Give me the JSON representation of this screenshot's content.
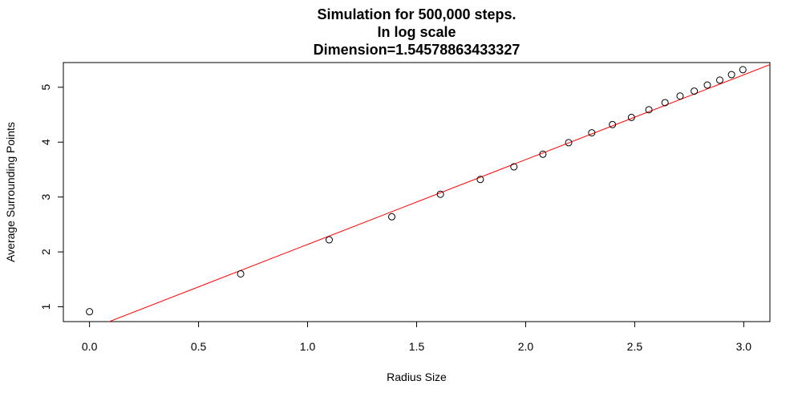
{
  "chart_data": {
    "type": "scatter",
    "title": [
      "Simulation for 500,000 steps.",
      "In log scale",
      "Dimension=1.54578863433327"
    ],
    "xlabel": "Radius Size",
    "ylabel": "Average Surrounding Points",
    "xlim": [
      -0.12,
      3.12
    ],
    "ylim": [
      0.73,
      5.45
    ],
    "xticks": [
      0.0,
      0.5,
      1.0,
      1.5,
      2.0,
      2.5,
      3.0
    ],
    "xtick_labels": [
      "0.0",
      "0.5",
      "1.0",
      "1.5",
      "2.0",
      "2.5",
      "3.0"
    ],
    "yticks": [
      1,
      2,
      3,
      4,
      5
    ],
    "ytick_labels": [
      "1",
      "2",
      "3",
      "4",
      "5"
    ],
    "grid": false,
    "points": {
      "x": [
        0.0,
        0.693,
        1.099,
        1.386,
        1.609,
        1.792,
        1.946,
        2.079,
        2.197,
        2.303,
        2.398,
        2.485,
        2.565,
        2.639,
        2.708,
        2.773,
        2.833,
        2.89,
        2.944,
        2.996
      ],
      "y": [
        0.91,
        1.6,
        2.22,
        2.64,
        3.05,
        3.32,
        3.55,
        3.78,
        3.99,
        4.17,
        4.32,
        4.45,
        4.59,
        4.72,
        4.84,
        4.93,
        5.04,
        5.13,
        5.23,
        5.32
      ]
    },
    "fit_line": {
      "slope": 1.54578863433327,
      "intercept": 0.59,
      "color": "#ff0000"
    },
    "point_color": "#000000"
  }
}
